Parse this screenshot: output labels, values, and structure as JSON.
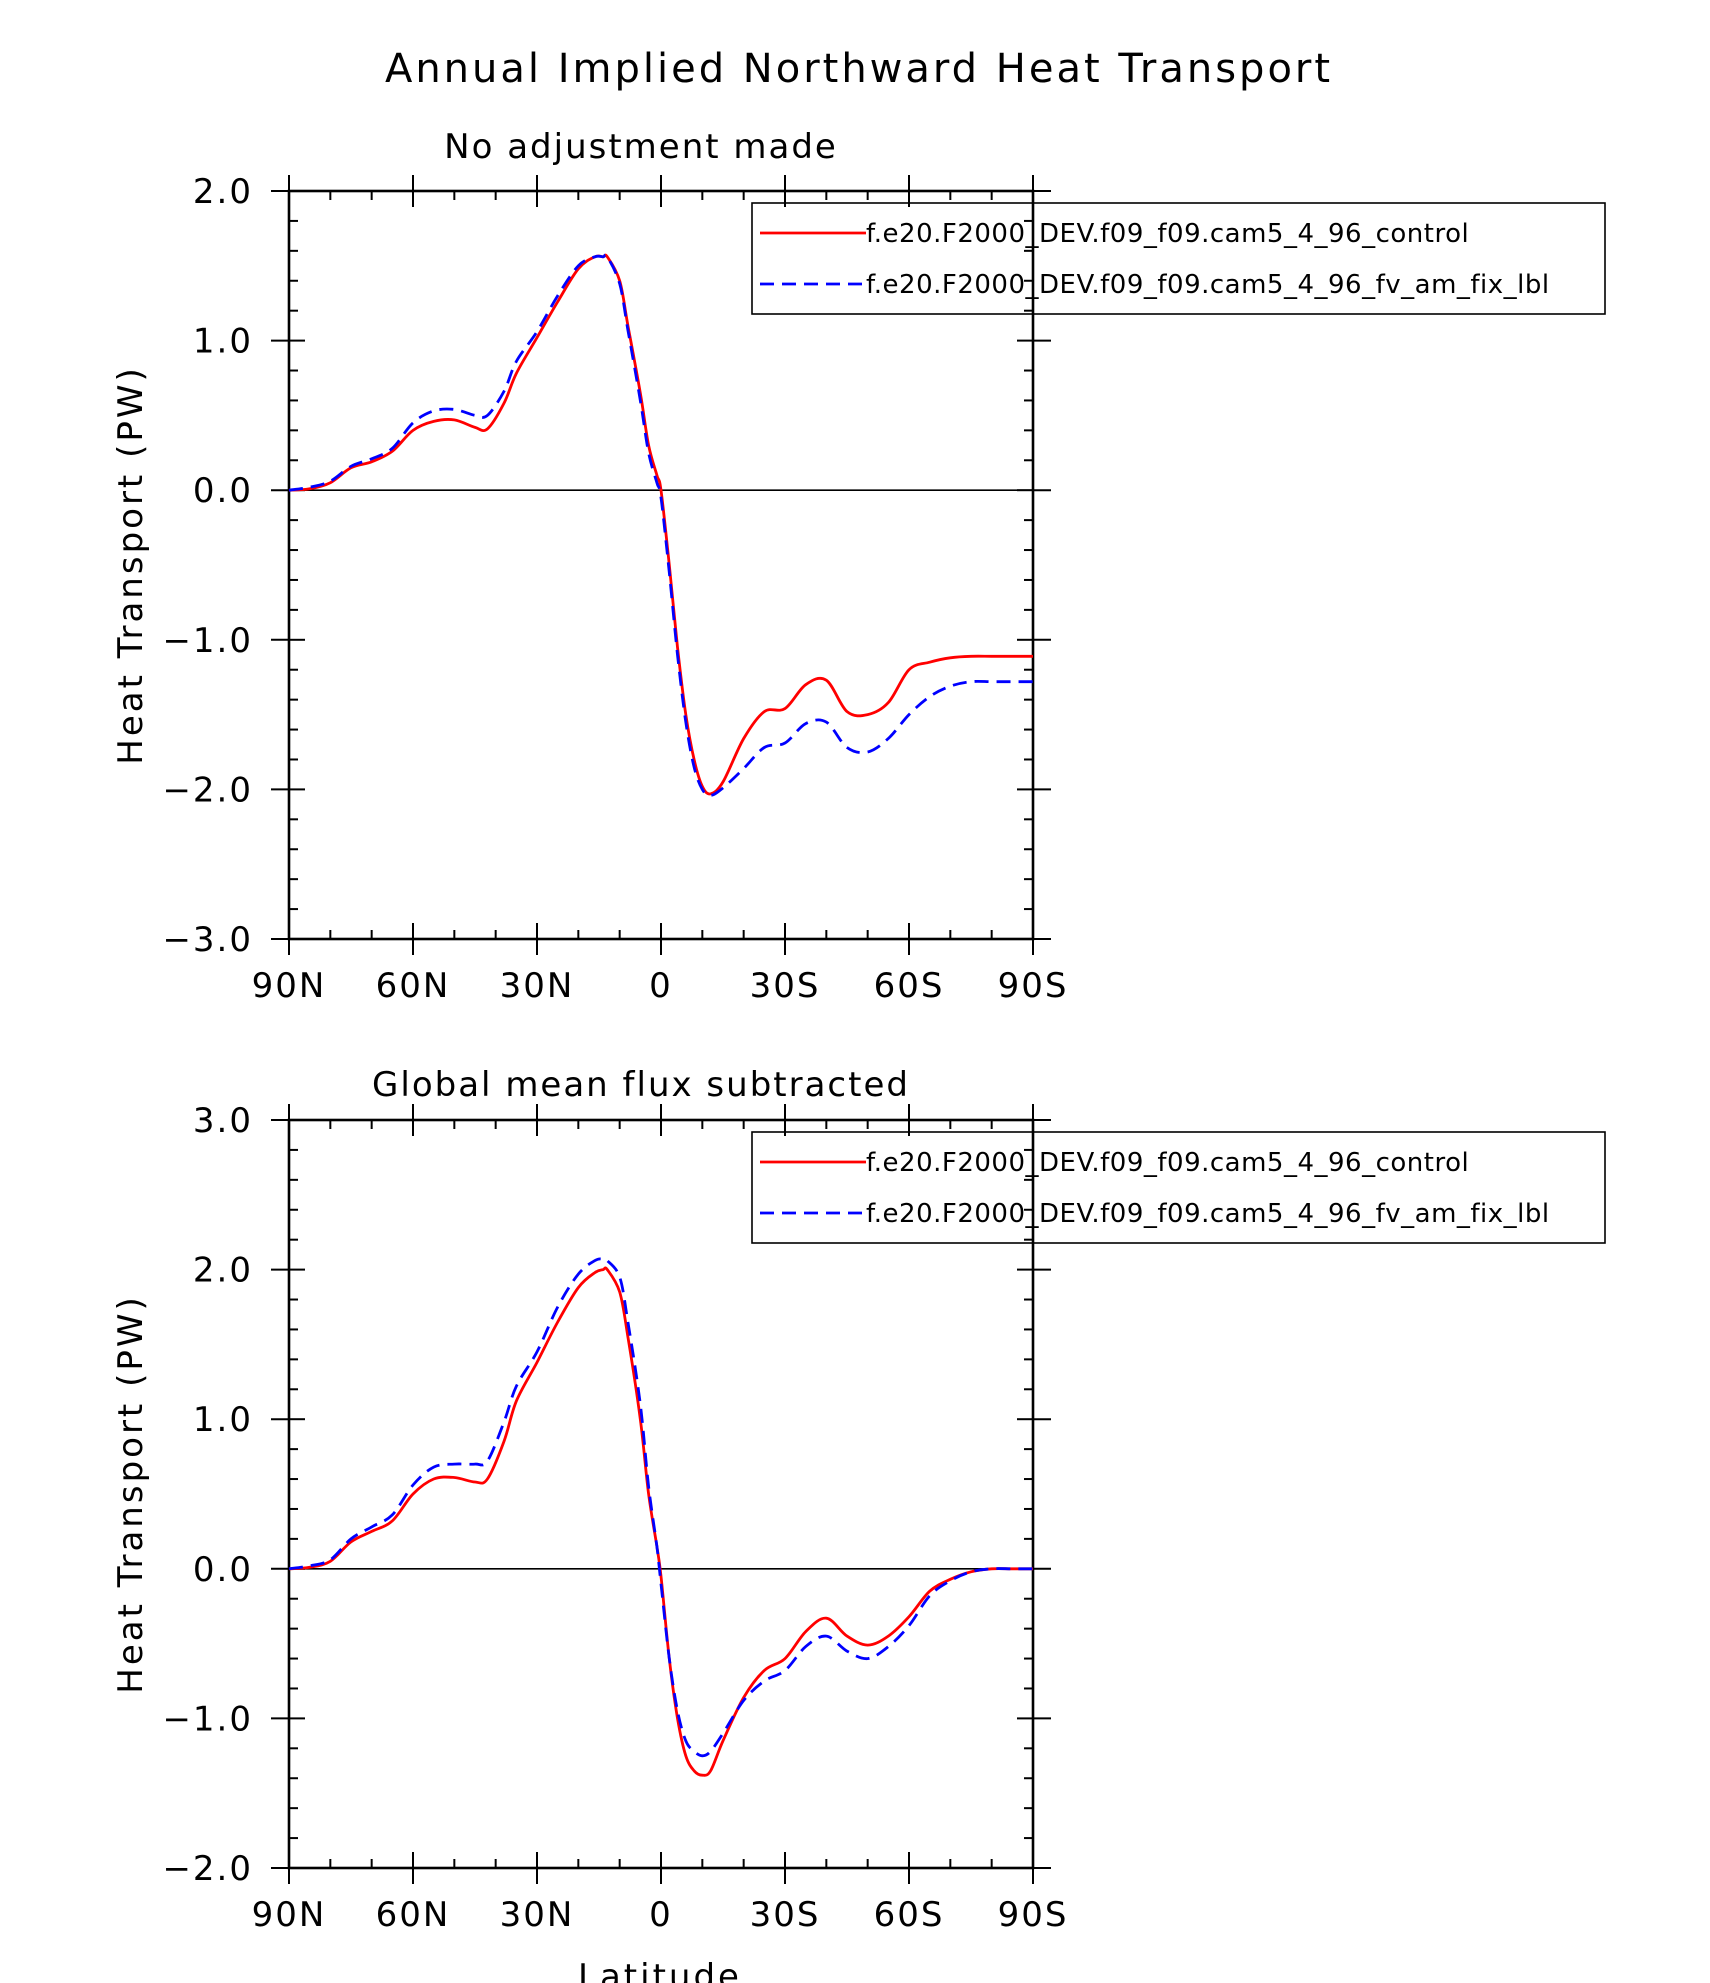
{
  "title": "Annual Implied Northward Heat Transport",
  "chart_data": [
    {
      "type": "line",
      "title": "No adjustment made",
      "xlabel": "",
      "ylabel": "Heat Transport (PW)",
      "xlim": [
        90,
        -90
      ],
      "ylim": [
        -3.0,
        2.0
      ],
      "xticks": [
        90,
        60,
        30,
        0,
        -30,
        -60,
        -90
      ],
      "xtick_labels": [
        "90N",
        "60N",
        "30N",
        "0",
        "30S",
        "60S",
        "90S"
      ],
      "yticks": [
        2.0,
        1.0,
        0.0,
        -1.0,
        -2.0,
        -3.0
      ],
      "ytick_labels": [
        "2.0",
        "1.0",
        "0.0",
        "−1.0",
        "−2.0",
        "−3.0"
      ],
      "reference_line": 0,
      "legend": "top-right",
      "series": [
        {
          "name": "f.e20.F2000_DEV.f09_f09.cam5_4_96_control",
          "color": "#ff0000",
          "dash": "solid",
          "x": [
            90,
            85,
            80,
            75,
            70,
            65,
            60,
            55,
            50,
            45,
            42,
            38,
            35,
            30,
            25,
            20,
            16,
            14,
            13,
            10,
            8,
            5,
            3,
            1,
            0,
            -2,
            -4,
            -6,
            -8,
            -10,
            -12,
            -15,
            -20,
            -25,
            -30,
            -35,
            -40,
            -45,
            -50,
            -55,
            -60,
            -65,
            -70,
            -75,
            -80,
            -85,
            -90
          ],
          "y": [
            0.0,
            0.01,
            0.05,
            0.15,
            0.19,
            0.26,
            0.4,
            0.46,
            0.47,
            0.42,
            0.41,
            0.58,
            0.78,
            1.02,
            1.26,
            1.48,
            1.56,
            1.56,
            1.56,
            1.4,
            1.1,
            0.65,
            0.3,
            0.1,
            0.0,
            -0.5,
            -1.05,
            -1.5,
            -1.8,
            -1.98,
            -2.03,
            -1.95,
            -1.66,
            -1.48,
            -1.46,
            -1.3,
            -1.27,
            -1.48,
            -1.5,
            -1.42,
            -1.2,
            -1.15,
            -1.12,
            -1.11,
            -1.11,
            -1.11,
            -1.11
          ]
        },
        {
          "name": "f.e20.F2000_DEV.f09_f09.cam5_4_96_fv_am_fix_lbl",
          "color": "#0000ff",
          "dash": "dashed",
          "x": [
            90,
            85,
            80,
            75,
            70,
            65,
            60,
            55,
            50,
            45,
            42,
            38,
            35,
            30,
            25,
            20,
            16,
            14,
            13,
            10,
            8,
            5,
            3,
            1,
            0,
            -2,
            -4,
            -6,
            -8,
            -10,
            -12,
            -15,
            -20,
            -25,
            -30,
            -35,
            -40,
            -45,
            -50,
            -55,
            -60,
            -65,
            -70,
            -75,
            -80,
            -85,
            -90
          ],
          "y": [
            0.0,
            0.02,
            0.06,
            0.16,
            0.21,
            0.28,
            0.45,
            0.53,
            0.54,
            0.5,
            0.5,
            0.66,
            0.86,
            1.06,
            1.3,
            1.5,
            1.56,
            1.56,
            1.56,
            1.38,
            1.07,
            0.6,
            0.25,
            0.05,
            -0.05,
            -0.55,
            -1.1,
            -1.55,
            -1.85,
            -2.0,
            -2.04,
            -1.99,
            -1.86,
            -1.72,
            -1.69,
            -1.56,
            -1.55,
            -1.72,
            -1.75,
            -1.66,
            -1.5,
            -1.38,
            -1.31,
            -1.28,
            -1.28,
            -1.28,
            -1.28
          ]
        }
      ]
    },
    {
      "type": "line",
      "title": "Global mean flux subtracted",
      "xlabel": "Latitude",
      "ylabel": "Heat Transport (PW)",
      "xlim": [
        90,
        -90
      ],
      "ylim": [
        -2.0,
        3.0
      ],
      "xticks": [
        90,
        60,
        30,
        0,
        -30,
        -60,
        -90
      ],
      "xtick_labels": [
        "90N",
        "60N",
        "30N",
        "0",
        "30S",
        "60S",
        "90S"
      ],
      "yticks": [
        3.0,
        2.0,
        1.0,
        0.0,
        -1.0,
        -2.0
      ],
      "ytick_labels": [
        "3.0",
        "2.0",
        "1.0",
        "0.0",
        "−1.0",
        "−2.0"
      ],
      "reference_line": 0,
      "legend": "top-right",
      "series": [
        {
          "name": "f.e20.F2000_DEV.f09_f09.cam5_4_96_control",
          "color": "#ff0000",
          "dash": "solid",
          "x": [
            90,
            85,
            80,
            75,
            70,
            65,
            60,
            55,
            50,
            45,
            42,
            38,
            35,
            30,
            25,
            20,
            16,
            14,
            13,
            10,
            8,
            5,
            3,
            1,
            0,
            -2,
            -4,
            -6,
            -8,
            -10,
            -12,
            -15,
            -20,
            -25,
            -30,
            -35,
            -40,
            -45,
            -50,
            -55,
            -60,
            -65,
            -70,
            -75,
            -80,
            -85,
            -90
          ],
          "y": [
            0.0,
            0.01,
            0.05,
            0.18,
            0.25,
            0.32,
            0.5,
            0.6,
            0.61,
            0.58,
            0.6,
            0.85,
            1.12,
            1.38,
            1.65,
            1.88,
            1.98,
            2.0,
            2.0,
            1.85,
            1.55,
            1.0,
            0.5,
            0.15,
            -0.05,
            -0.6,
            -1.0,
            -1.25,
            -1.35,
            -1.38,
            -1.35,
            -1.15,
            -0.86,
            -0.68,
            -0.6,
            -0.42,
            -0.33,
            -0.45,
            -0.51,
            -0.45,
            -0.32,
            -0.15,
            -0.07,
            -0.02,
            0.0,
            0.0,
            0.0
          ]
        },
        {
          "name": "f.e20.F2000_DEV.f09_f09.cam5_4_96_fv_am_fix_lbl",
          "color": "#0000ff",
          "dash": "dashed",
          "x": [
            90,
            85,
            80,
            75,
            70,
            65,
            60,
            55,
            50,
            45,
            42,
            38,
            35,
            30,
            25,
            20,
            16,
            14,
            13,
            10,
            8,
            5,
            3,
            1,
            0,
            -2,
            -4,
            -6,
            -8,
            -10,
            -12,
            -15,
            -20,
            -25,
            -30,
            -35,
            -40,
            -45,
            -50,
            -55,
            -60,
            -65,
            -70,
            -75,
            -80,
            -85,
            -90
          ],
          "y": [
            0.0,
            0.02,
            0.06,
            0.2,
            0.28,
            0.36,
            0.56,
            0.68,
            0.7,
            0.7,
            0.72,
            0.98,
            1.22,
            1.45,
            1.75,
            1.97,
            2.06,
            2.07,
            2.06,
            1.95,
            1.65,
            1.1,
            0.55,
            0.15,
            -0.1,
            -0.6,
            -0.95,
            -1.15,
            -1.22,
            -1.25,
            -1.22,
            -1.1,
            -0.88,
            -0.75,
            -0.68,
            -0.52,
            -0.45,
            -0.55,
            -0.6,
            -0.52,
            -0.38,
            -0.18,
            -0.08,
            -0.02,
            0.0,
            0.0,
            0.0
          ]
        }
      ]
    }
  ]
}
